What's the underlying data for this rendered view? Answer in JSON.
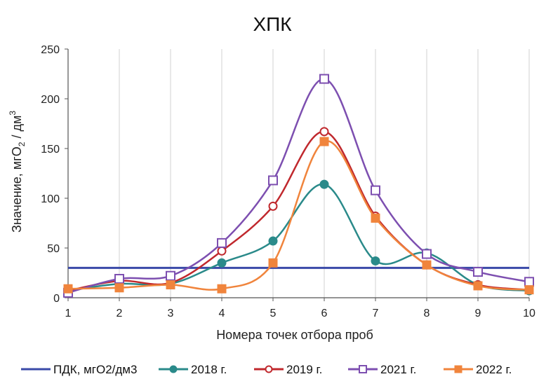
{
  "chart_data": {
    "type": "line",
    "title": "ХПК",
    "xlabel": "Номера точек отбора проб",
    "ylabel_main": "Значение, мгО",
    "ylabel_sub": "2",
    "ylabel_mid": " / дм",
    "ylabel_sup": "3",
    "x": [
      1,
      2,
      3,
      4,
      5,
      6,
      7,
      8,
      9,
      10
    ],
    "x_tick_labels": [
      "1",
      "2",
      "3",
      "4",
      "5",
      "6",
      "7",
      "8",
      "9",
      "10"
    ],
    "ylim": [
      0,
      250
    ],
    "y_ticks": [
      0,
      50,
      100,
      150,
      200,
      250
    ],
    "grid": "vertical",
    "legend_position": "bottom",
    "series": [
      {
        "name": "ПДК, мгО2/дм3",
        "color": "#3a4aa8",
        "marker": "none",
        "values": [
          30,
          30,
          30,
          30,
          30,
          30,
          30,
          30,
          30,
          30
        ]
      },
      {
        "name": "2018 г.",
        "color": "#2a8a8a",
        "marker": "circle-filled",
        "values": [
          7,
          14,
          14,
          35,
          57,
          114,
          37,
          45,
          13,
          7
        ]
      },
      {
        "name": "2019 г.",
        "color": "#c0282d",
        "marker": "circle-open",
        "values": [
          7,
          17,
          15,
          47,
          92,
          167,
          82,
          33,
          13,
          8
        ]
      },
      {
        "name": "2021 г.",
        "color": "#7d4fb0",
        "marker": "square-open",
        "values": [
          5,
          19,
          22,
          55,
          118,
          220,
          108,
          44,
          26,
          16
        ]
      },
      {
        "name": "2022 г.",
        "color": "#f0843c",
        "marker": "square-filled",
        "values": [
          9,
          10,
          13,
          9,
          35,
          157,
          80,
          33,
          12,
          8
        ]
      }
    ]
  }
}
